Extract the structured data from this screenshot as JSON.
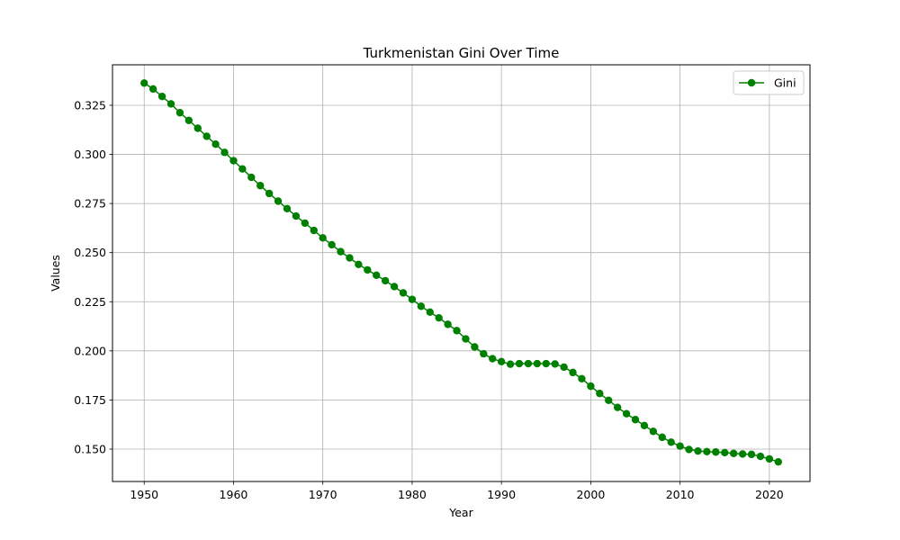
{
  "chart_data": {
    "type": "line",
    "title": "Turkmenistan Gini Over Time",
    "xlabel": "Year",
    "ylabel": "Values",
    "grid": true,
    "legend_position": "top-right",
    "xlim": [
      1946.45,
      2024.55
    ],
    "ylim": [
      0.1335,
      0.3456
    ],
    "x_ticks": [
      1950,
      1960,
      1970,
      1980,
      1990,
      2000,
      2010,
      2020
    ],
    "y_ticks": [
      0.15,
      0.175,
      0.2,
      0.225,
      0.25,
      0.275,
      0.3,
      0.325
    ],
    "x_tick_labels": [
      "1950",
      "1960",
      "1970",
      "1980",
      "1990",
      "2000",
      "2010",
      "2020"
    ],
    "y_tick_labels": [
      "0.150",
      "0.175",
      "0.200",
      "0.225",
      "0.250",
      "0.275",
      "0.300",
      "0.325"
    ],
    "x": [
      1950,
      1951,
      1952,
      1953,
      1954,
      1955,
      1956,
      1957,
      1958,
      1959,
      1960,
      1961,
      1962,
      1963,
      1964,
      1965,
      1966,
      1967,
      1968,
      1969,
      1970,
      1971,
      1972,
      1973,
      1974,
      1975,
      1976,
      1977,
      1978,
      1979,
      1980,
      1981,
      1982,
      1983,
      1984,
      1985,
      1986,
      1987,
      1988,
      1989,
      1990,
      1991,
      1992,
      1993,
      1994,
      1995,
      1996,
      1997,
      1998,
      1999,
      2000,
      2001,
      2002,
      2003,
      2004,
      2005,
      2006,
      2007,
      2008,
      2009,
      2010,
      2011,
      2012,
      2013,
      2014,
      2015,
      2016,
      2017,
      2018,
      2019,
      2020,
      2021
    ],
    "series": [
      {
        "name": "Gini",
        "color": "#008000",
        "marker": "circle",
        "values": [
          0.3363,
          0.3333,
          0.3295,
          0.3257,
          0.3212,
          0.3173,
          0.3133,
          0.3092,
          0.3052,
          0.301,
          0.2968,
          0.2926,
          0.2883,
          0.2841,
          0.2801,
          0.2762,
          0.2724,
          0.2686,
          0.265,
          0.2613,
          0.2575,
          0.254,
          0.2505,
          0.2473,
          0.244,
          0.2412,
          0.2385,
          0.2357,
          0.2327,
          0.2295,
          0.2262,
          0.2227,
          0.2197,
          0.2168,
          0.2135,
          0.2103,
          0.2061,
          0.202,
          0.1985,
          0.196,
          0.1945,
          0.1932,
          0.1935,
          0.1935,
          0.1935,
          0.1935,
          0.1933,
          0.1917,
          0.189,
          0.1858,
          0.182,
          0.1783,
          0.1748,
          0.1712,
          0.168,
          0.165,
          0.162,
          0.159,
          0.156,
          0.1535,
          0.1515,
          0.1498,
          0.149,
          0.1487,
          0.1485,
          0.1482,
          0.1478,
          0.1475,
          0.1473,
          0.1463,
          0.145,
          0.1435
        ]
      }
    ]
  }
}
